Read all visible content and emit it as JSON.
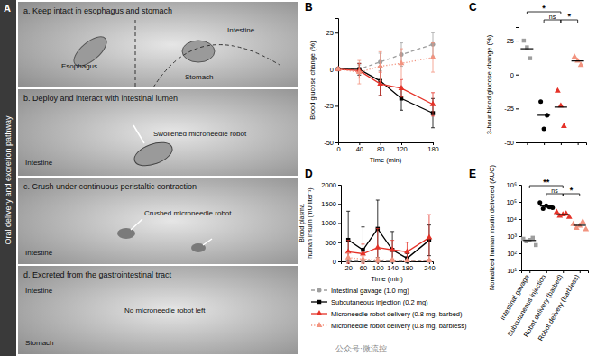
{
  "panel_a": {
    "label": "A",
    "side_title": "Oral delivery and excretion pathway",
    "frames": [
      {
        "caption": "a. Keep intact in esophagus and stomach",
        "labels": [
          "Esophagus",
          "Stomach",
          "Intestine"
        ]
      },
      {
        "caption": "b. Deploy and interact with intestinal lumen",
        "labels": [
          "Intestine",
          "Swollened microneedle robot"
        ]
      },
      {
        "caption": "c. Crush under continuous peristaltic contraction",
        "labels": [
          "Crushed microneedle robot",
          "Intestine"
        ]
      },
      {
        "caption": "d. Excreted from the gastrointestinal tract",
        "labels": [
          "Intestine",
          "No microneedle robot left",
          "Stomach"
        ]
      }
    ]
  },
  "watermark": "公众号·微流控",
  "chart_data": [
    {
      "title": "B",
      "type": "line",
      "x_label": "Time (min)",
      "y_label": "Blood glucose change (%)",
      "x": [
        0,
        40,
        80,
        120,
        180
      ],
      "xlim": [
        0,
        180
      ],
      "xticks": [
        0,
        40,
        80,
        120,
        180
      ],
      "ylim": [
        -50,
        35
      ],
      "yticks": [
        -50,
        -25,
        0,
        25
      ],
      "series": [
        {
          "color": "#9e9e9e",
          "marker": "circle",
          "line_style": "dashed",
          "values": [
            0,
            0,
            5,
            10,
            17
          ],
          "errors": [
            0,
            3,
            6,
            8,
            8
          ]
        },
        {
          "color": "#000000",
          "marker": "square",
          "line_style": "solid",
          "values": [
            0,
            0,
            -8,
            -20,
            -30
          ],
          "errors": [
            0,
            4,
            10,
            8,
            10
          ]
        },
        {
          "color": "#e53228",
          "marker": "triangle",
          "line_style": "solid",
          "values": [
            0,
            -1,
            -10,
            -13,
            -24
          ],
          "errors": [
            0,
            5,
            8,
            6,
            8
          ]
        },
        {
          "color": "#f2937f",
          "marker": "triangle",
          "line_style": "dotted",
          "values": [
            0,
            -2,
            2,
            4,
            8
          ],
          "errors": [
            0,
            8,
            10,
            10,
            10
          ]
        }
      ]
    },
    {
      "title": "C",
      "type": "dot",
      "y_label": "3-hour blood glucose change (%)",
      "categories": [
        null,
        null,
        null,
        null
      ],
      "ylim": [
        -50,
        35
      ],
      "yticks": [
        -50,
        -25,
        0,
        25
      ],
      "groups": [
        {
          "color": "#9e9e9e",
          "marker": "square",
          "values": [
            25,
            20,
            12
          ],
          "mean": 19
        },
        {
          "color": "#000000",
          "marker": "circle",
          "values": [
            -20,
            -40,
            -30
          ],
          "mean": -30
        },
        {
          "color": "#e53228",
          "marker": "triangle",
          "values": [
            -12,
            -23,
            -38
          ],
          "mean": -24
        },
        {
          "color": "#f2937f",
          "marker": "triangle",
          "values": [
            13,
            10,
            7
          ],
          "mean": 10
        }
      ],
      "annotations": [
        {
          "text": "*",
          "between": [
            0,
            2
          ]
        },
        {
          "text": "ns",
          "between": [
            1,
            2
          ]
        },
        {
          "text": "*",
          "between": [
            2,
            3
          ]
        }
      ]
    },
    {
      "title": "D",
      "type": "line",
      "x_label": "Time (min)",
      "y_label": [
        "Blood plasma",
        "human insulin (mU liter⁻¹)"
      ],
      "x": [
        20,
        60,
        100,
        140,
        180,
        240
      ],
      "xlim": [
        0,
        250
      ],
      "xticks": [
        20,
        60,
        100,
        140,
        180,
        240
      ],
      "ylim": [
        0,
        2000
      ],
      "yticks": [
        0,
        500,
        1000,
        1500,
        2000
      ],
      "legend": "bottom",
      "series": [
        {
          "name": "Intestinal gavage (1.0 mg)",
          "color": "#9e9e9e",
          "marker": "circle",
          "line_style": "dashed",
          "values": [
            10,
            10,
            10,
            10,
            10,
            20
          ],
          "errors": [
            10,
            10,
            10,
            10,
            10,
            15
          ]
        },
        {
          "name": "Subcutaneous injection (0.2 mg)",
          "color": "#000000",
          "marker": "square",
          "line_style": "solid",
          "values": [
            560,
            300,
            850,
            300,
            80,
            550
          ],
          "errors": [
            750,
            600,
            750,
            480,
            120,
            400
          ]
        },
        {
          "name": "Microneedle robot delivery (0.8 mg, barbed)",
          "color": "#e53228",
          "marker": "triangle",
          "line_style": "solid",
          "values": [
            250,
            200,
            360,
            300,
            250,
            620
          ],
          "errors": [
            300,
            250,
            500,
            250,
            250,
            600
          ]
        },
        {
          "name": "Microneedle robot delivery (0.8 mg, barbless)",
          "color": "#f2937f",
          "marker": "triangle",
          "line_style": "dotted",
          "values": [
            100,
            60,
            40,
            30,
            20,
            20
          ],
          "errors": [
            120,
            80,
            60,
            40,
            30,
            30
          ]
        }
      ]
    },
    {
      "title": "E",
      "type": "dot",
      "y_label": "Nomalized human insulin delivered (AUC)",
      "log": "y",
      "categories": [
        "Intestinal gavage",
        "Subcutaneous injection",
        "Robot delivery (barbed)",
        "Robot delivery (barbless)"
      ],
      "ylim": [
        10,
        1000000
      ],
      "yticks": [
        {
          "value": 10,
          "label": "10¹"
        },
        {
          "value": 100,
          "label": "10²"
        },
        {
          "value": 1000,
          "label": "10³"
        },
        {
          "value": 10000,
          "label": "10⁴"
        },
        {
          "value": 100000,
          "label": "10⁵"
        },
        {
          "value": 1000000,
          "label": "10⁶"
        }
      ],
      "groups": [
        {
          "color": "#9e9e9e",
          "marker": "square",
          "values": [
            700,
            500,
            600,
            800,
            300
          ],
          "mean": 560
        },
        {
          "color": "#000000",
          "marker": "circle",
          "values": [
            90000,
            40000,
            60000,
            50000,
            45000
          ],
          "mean": 57000
        },
        {
          "color": "#e53228",
          "marker": "triangle",
          "values": [
            25000,
            15000,
            18000,
            20000,
            13000
          ],
          "mean": 18200
        },
        {
          "color": "#f2937f",
          "marker": "triangle",
          "values": [
            5000,
            3000,
            4000,
            7000,
            2500
          ],
          "mean": 4300
        }
      ],
      "annotations": [
        {
          "text": "**",
          "between": [
            0,
            2
          ]
        },
        {
          "text": "ns",
          "between": [
            1,
            2
          ]
        },
        {
          "text": "*",
          "between": [
            2,
            3
          ]
        }
      ]
    }
  ]
}
